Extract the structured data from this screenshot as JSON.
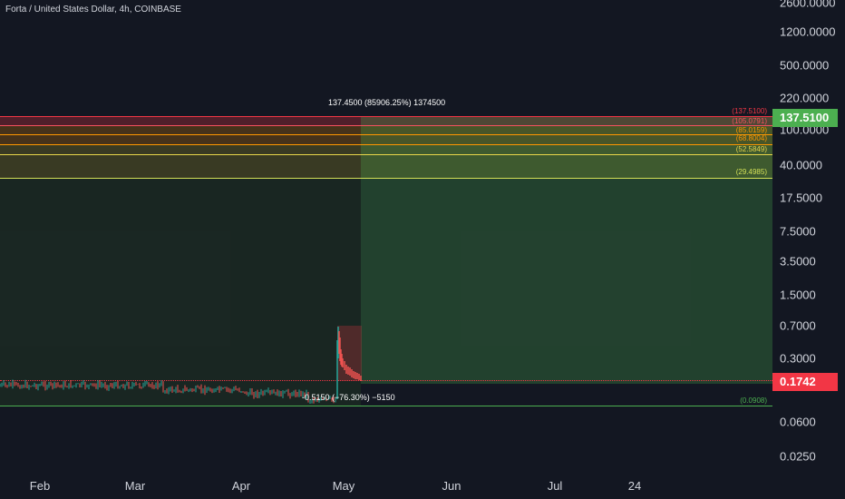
{
  "symbol": {
    "title": "Forta / United States Dollar, 4h, COINBASE"
  },
  "price_axis": {
    "labels": [
      "2600.0000",
      "1200.0000",
      "500.0000",
      "220.0000",
      "100.0000",
      "40.0000",
      "17.5000",
      "7.5000",
      "3.5000",
      "1.5000",
      "0.7000",
      "0.3000",
      "0.0600",
      "0.0250"
    ],
    "target_tag": "137.5100",
    "target_color": "#4caf50",
    "current_tag": "0.1742",
    "current_color": "#f23645"
  },
  "time_axis": {
    "labels": [
      "Feb",
      "Mar",
      "Apr",
      "May",
      "Jun",
      "Jul",
      "24"
    ]
  },
  "fib_levels": [
    {
      "label": "(137.5100)",
      "color": "#f23645"
    },
    {
      "label": "(105.0791)",
      "color": "#f7525f"
    },
    {
      "label": "(85.0159)",
      "color": "#ff9800"
    },
    {
      "label": "(68.8004)",
      "color": "#ff9800"
    },
    {
      "label": "(52.5849)",
      "color": "#e9d64a"
    },
    {
      "label": "(29.4985)",
      "color": "#d4e157"
    },
    {
      "label": "(0.0908)",
      "color": "#4caf50"
    }
  ],
  "measure_up": {
    "text": "137.4500 (85906.25%) 1374500"
  },
  "measure_down": {
    "text": "-0.5150 (−76.30%) −5150"
  },
  "colors": {
    "up": "#26a69a",
    "down": "#ef5350",
    "background": "#131722"
  }
}
